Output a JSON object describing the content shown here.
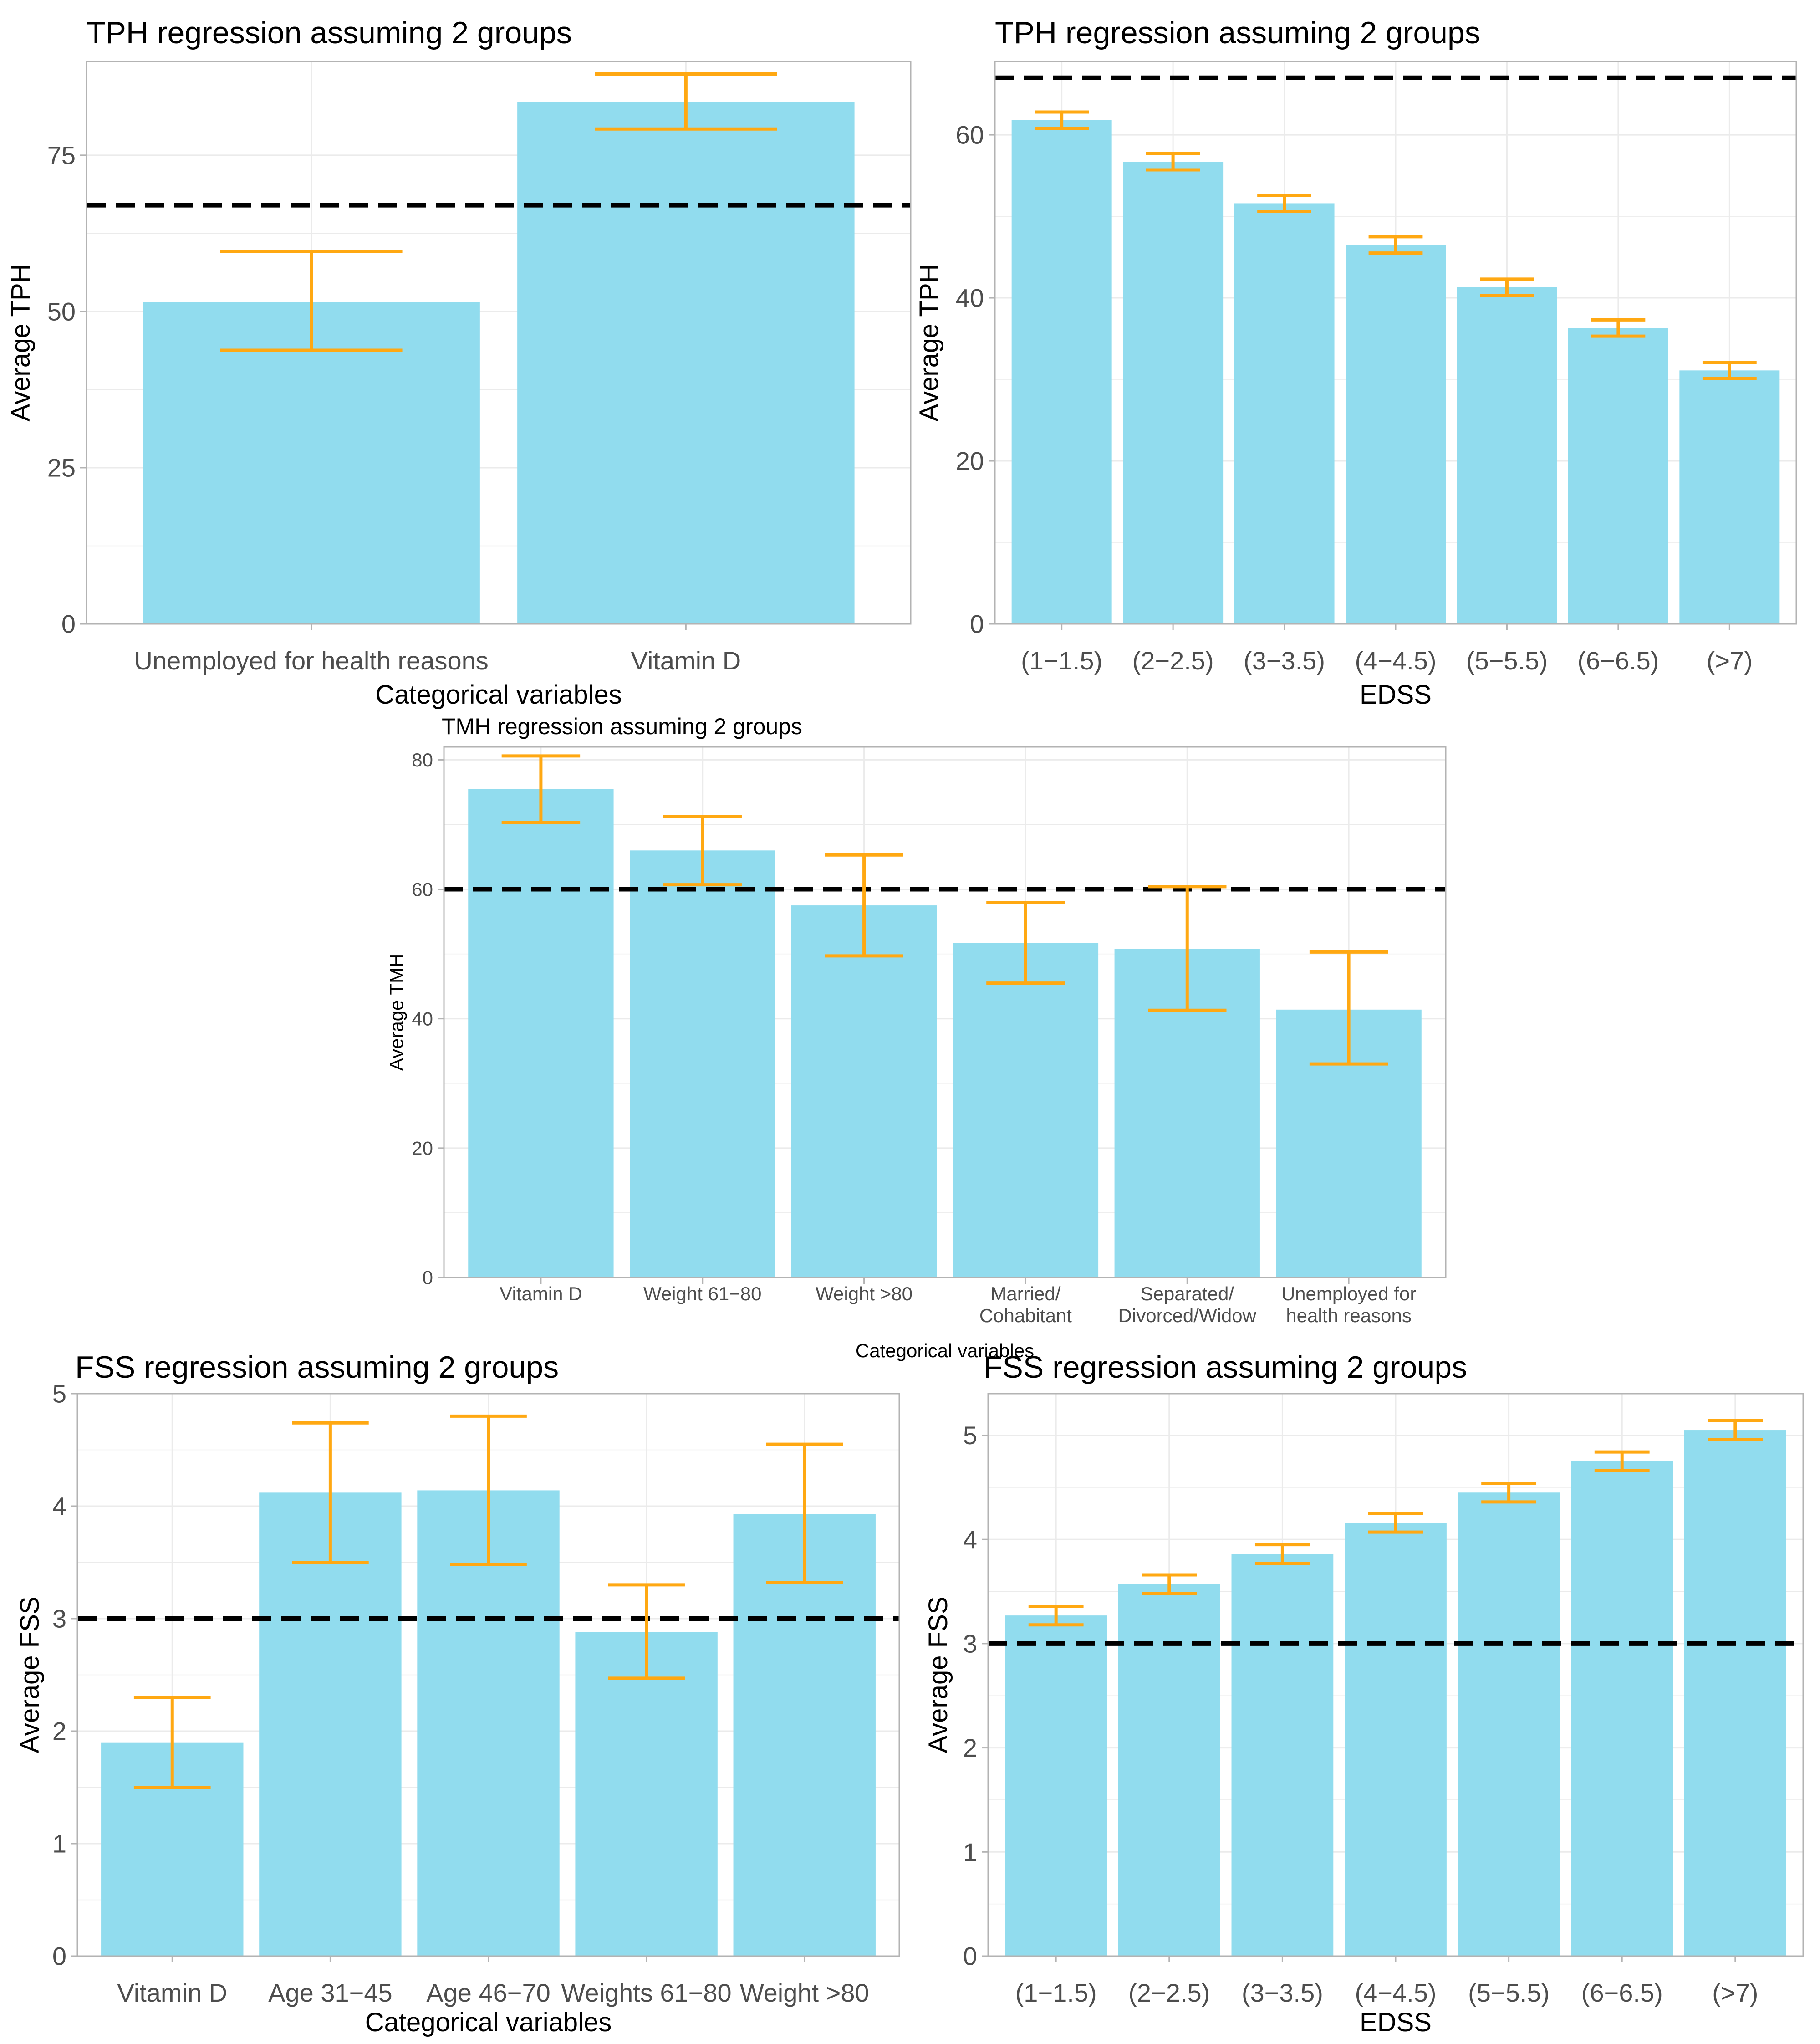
{
  "colors": {
    "bar": "#91dcee",
    "error_bar": "#ffa812",
    "reference_line": "#000000",
    "grid": "#ebebeb",
    "panel_border": "#b3b3b3",
    "text": "#000000",
    "tick_label": "#4d4d4d"
  },
  "chart_data": [
    {
      "id": "tph-categorical",
      "type": "bar",
      "title": "TPH regression assuming 2 groups",
      "xlabel": "Categorical variables",
      "ylabel": "Average TPH",
      "categories": [
        "Unemployed for health reasons",
        "Vitamin D"
      ],
      "values": [
        51.5,
        83.5
      ],
      "error_low": [
        43.8,
        79.2
      ],
      "error_high": [
        59.6,
        88.0
      ],
      "reference_line": 67,
      "ylim": [
        0,
        90
      ],
      "yticks": [
        0,
        25,
        50,
        75
      ]
    },
    {
      "id": "tph-edss",
      "type": "bar",
      "title": "TPH regression assuming 2 groups",
      "xlabel": "EDSS",
      "ylabel": "Average TPH",
      "categories": [
        "(1−1.5)",
        "(2−2.5)",
        "(3−3.5)",
        "(4−4.5)",
        "(5−5.5)",
        "(6−6.5)",
        "(>7)"
      ],
      "values": [
        61.8,
        56.7,
        51.6,
        46.5,
        41.3,
        36.3,
        31.1
      ],
      "error_low": [
        60.8,
        55.7,
        50.6,
        45.5,
        40.3,
        35.3,
        30.1
      ],
      "error_high": [
        62.8,
        57.7,
        52.6,
        47.5,
        42.3,
        37.3,
        32.1
      ],
      "reference_line": 67,
      "ylim": [
        0,
        69
      ],
      "yticks": [
        0,
        20,
        40,
        60
      ]
    },
    {
      "id": "tmh-categorical",
      "type": "bar",
      "title": "TMH regression assuming 2 groups",
      "xlabel": "Categorical variables",
      "ylabel": "Average TMH",
      "categories": [
        "Vitamin D",
        "Weight 61−80",
        "Weight >80",
        "Married/\nCohabitant",
        "Separated/\nDivorced/Widow",
        "Unemployed for\nhealth reasons"
      ],
      "values": [
        75.5,
        66.0,
        57.5,
        51.7,
        50.8,
        41.4
      ],
      "error_low": [
        70.3,
        60.7,
        49.7,
        45.5,
        41.3,
        33.0
      ],
      "error_high": [
        80.6,
        71.2,
        65.3,
        57.9,
        60.4,
        50.3
      ],
      "reference_line": 60,
      "ylim": [
        0,
        82
      ],
      "yticks": [
        0,
        20,
        40,
        60,
        80
      ]
    },
    {
      "id": "fss-categorical",
      "type": "bar",
      "title": "FSS regression assuming 2 groups",
      "xlabel": "Categorical variables",
      "ylabel": "Average FSS",
      "categories": [
        "Vitamin D",
        "Age 31−45",
        "Age 46−70",
        "Weights 61−80",
        "Weight >80"
      ],
      "values": [
        1.9,
        4.12,
        4.14,
        2.88,
        3.93
      ],
      "error_low": [
        1.5,
        3.5,
        3.48,
        2.47,
        3.32
      ],
      "error_high": [
        2.3,
        4.74,
        4.8,
        3.3,
        4.55
      ],
      "reference_line": 3,
      "ylim": [
        0,
        5
      ],
      "yticks": [
        0,
        1,
        2,
        3,
        4,
        5
      ]
    },
    {
      "id": "fss-edss",
      "type": "bar",
      "title": "FSS regression assuming 2 groups",
      "xlabel": "EDSS",
      "ylabel": "Average FSS",
      "categories": [
        "(1−1.5)",
        "(2−2.5)",
        "(3−3.5)",
        "(4−4.5)",
        "(5−5.5)",
        "(6−6.5)",
        "(>7)"
      ],
      "values": [
        3.27,
        3.57,
        3.86,
        4.16,
        4.45,
        4.75,
        5.05
      ],
      "error_low": [
        3.18,
        3.48,
        3.77,
        4.07,
        4.36,
        4.66,
        4.96
      ],
      "error_high": [
        3.36,
        3.66,
        3.95,
        4.25,
        4.54,
        4.84,
        5.14
      ],
      "reference_line": 3,
      "ylim": [
        0,
        5.4
      ],
      "yticks": [
        0,
        1,
        2,
        3,
        4,
        5
      ]
    }
  ]
}
